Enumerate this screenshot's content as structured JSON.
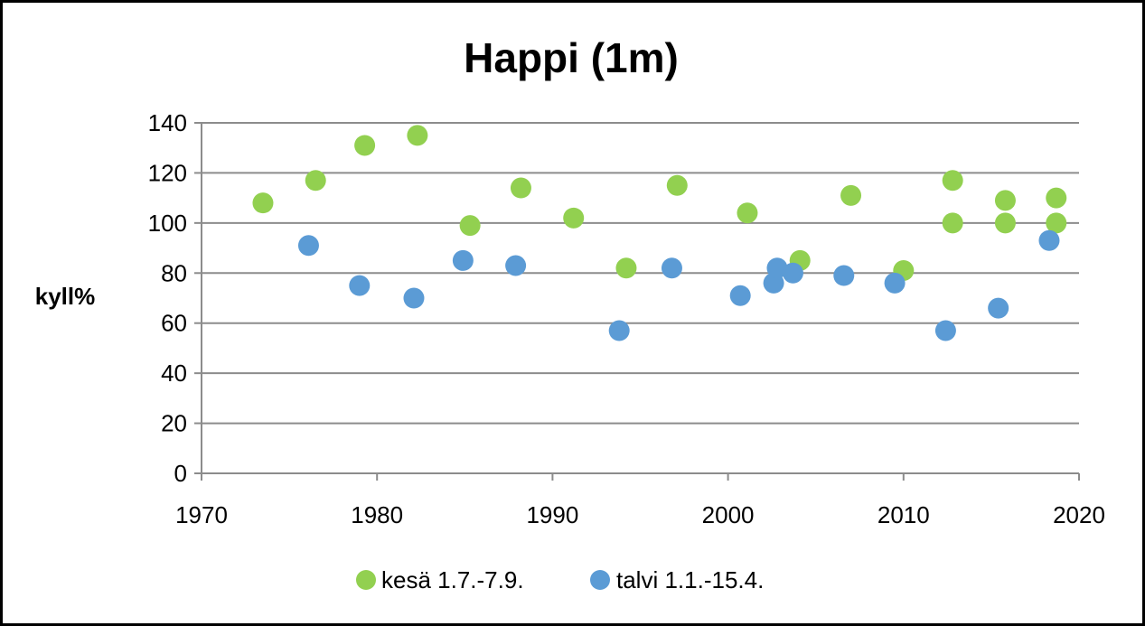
{
  "chart_data": {
    "type": "scatter",
    "title": "Happi (1m)",
    "xlabel": "",
    "ylabel": "kyll%",
    "xlim": [
      1970,
      2020
    ],
    "ylim": [
      0,
      140
    ],
    "x_ticks": [
      1970,
      1980,
      1990,
      2000,
      2010,
      2020
    ],
    "y_ticks": [
      0,
      20,
      40,
      60,
      80,
      100,
      120,
      140
    ],
    "grid": "horizontal",
    "legend_position": "bottom",
    "series": [
      {
        "name": "kesä 1.7.-7.9.",
        "color": "#92d050",
        "points": [
          [
            1973.5,
            108
          ],
          [
            1976.5,
            117
          ],
          [
            1979.3,
            131
          ],
          [
            1982.3,
            135
          ],
          [
            1985.3,
            99
          ],
          [
            1988.2,
            114
          ],
          [
            1991.2,
            102
          ],
          [
            1994.2,
            82
          ],
          [
            1997.1,
            115
          ],
          [
            2001.1,
            104
          ],
          [
            2004.1,
            85
          ],
          [
            2007.0,
            111
          ],
          [
            2010.0,
            81
          ],
          [
            2012.8,
            100
          ],
          [
            2012.8,
            117
          ],
          [
            2015.8,
            100
          ],
          [
            2015.8,
            109
          ],
          [
            2018.7,
            100
          ],
          [
            2018.7,
            110
          ]
        ]
      },
      {
        "name": "talvi 1.1.-15.4.",
        "color": "#5b9bd5",
        "points": [
          [
            1976.1,
            91
          ],
          [
            1979.0,
            75
          ],
          [
            1982.1,
            70
          ],
          [
            1984.9,
            85
          ],
          [
            1987.9,
            83
          ],
          [
            1993.8,
            57
          ],
          [
            1996.8,
            82
          ],
          [
            2000.7,
            71
          ],
          [
            2002.6,
            76
          ],
          [
            2002.8,
            82
          ],
          [
            2003.7,
            80
          ],
          [
            2006.6,
            79
          ],
          [
            2009.5,
            76
          ],
          [
            2012.4,
            57
          ],
          [
            2015.4,
            66
          ],
          [
            2018.3,
            93
          ]
        ]
      }
    ]
  }
}
